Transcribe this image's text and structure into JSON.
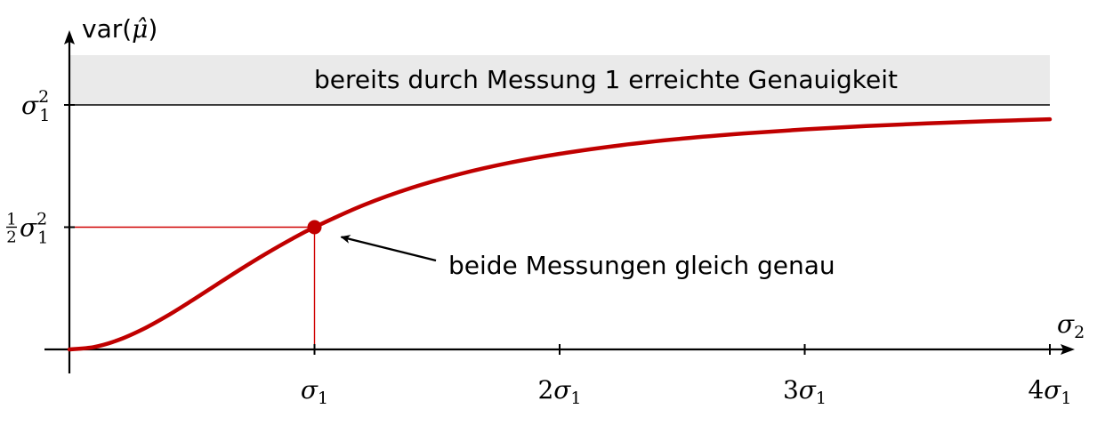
{
  "chart_data": {
    "type": "line",
    "title": "",
    "xlabel": "σ2",
    "ylabel": "var(μ̂)",
    "x_unit": "σ1",
    "y_unit": "σ1²",
    "xlim": [
      0,
      4
    ],
    "ylim": [
      0,
      1
    ],
    "x_ticks": [
      1,
      2,
      3,
      4
    ],
    "x_tick_labels": [
      {
        "coef": "",
        "sym": "σ",
        "sub": "1"
      },
      {
        "coef": "2",
        "sym": "σ",
        "sub": "1"
      },
      {
        "coef": "3",
        "sym": "σ",
        "sub": "1"
      },
      {
        "coef": "4",
        "sym": "σ",
        "sub": "1"
      }
    ],
    "y_ticks": [
      0.5,
      1
    ],
    "y_tick_labels": [
      {
        "frac_num": "1",
        "frac_den": "2",
        "sym": "σ",
        "sub": "1",
        "sup": "2"
      },
      {
        "sym": "σ",
        "sub": "1",
        "sup": "2"
      }
    ],
    "series": [
      {
        "color": "#c00000",
        "x": [
          0,
          0.1,
          0.2,
          0.3,
          0.4,
          0.5,
          0.6,
          0.7,
          0.8,
          0.9,
          1.0,
          1.2,
          1.4,
          1.6,
          1.8,
          2.0,
          2.25,
          2.5,
          2.75,
          3.0,
          3.25,
          3.5,
          3.75,
          4.0
        ],
        "y": [
          0,
          0.0099,
          0.0385,
          0.0826,
          0.1379,
          0.2,
          0.2647,
          0.3289,
          0.3902,
          0.4475,
          0.5,
          0.5902,
          0.6622,
          0.7191,
          0.7642,
          0.8,
          0.8351,
          0.8621,
          0.8832,
          0.9,
          0.9135,
          0.9245,
          0.9336,
          0.9412
        ]
      }
    ],
    "marked_point": {
      "x": 1,
      "y": 0.5,
      "color": "#c00000"
    },
    "shaded_band": {
      "label": "bereits durch Messung 1 erreichte Genauigkeit",
      "color": "#eaeaea"
    },
    "annotation": {
      "text": "beide Messungen gleich genau"
    },
    "grid": false
  }
}
